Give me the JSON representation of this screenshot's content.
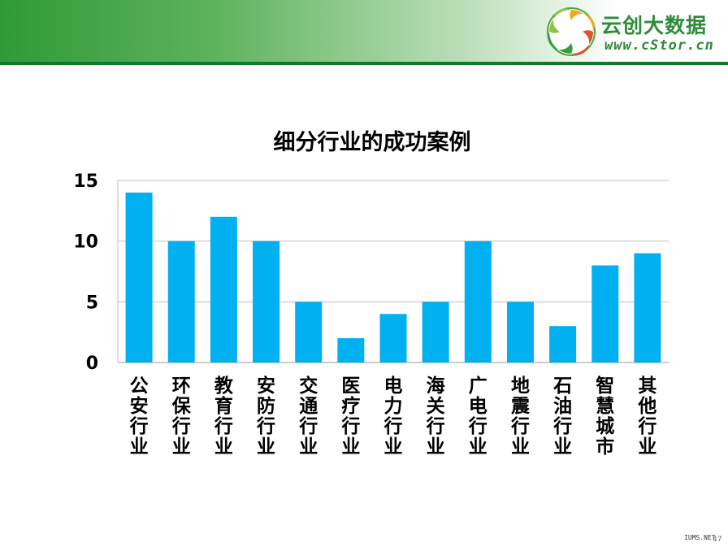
{
  "logo": {
    "name": "云创大数据",
    "url": "www.cStor.cn"
  },
  "footer": {
    "watermark": "IUMS.NET",
    "page_number": "47"
  },
  "colors": {
    "bar": "#00b0f0",
    "header_green": "#2f9a35",
    "logo_green": "#2e8b3a"
  },
  "chart_data": {
    "type": "bar",
    "title": "细分行业的成功案例",
    "categories": [
      "公安行业",
      "环保行业",
      "教育行业",
      "安防行业",
      "交通行业",
      "医疗行业",
      "电力行业",
      "海关行业",
      "广电行业",
      "地震行业",
      "石油行业",
      "智慧城市",
      "其他行业"
    ],
    "values": [
      14,
      10,
      12,
      10,
      5,
      2,
      4,
      5,
      10,
      5,
      3,
      8,
      9
    ],
    "ylim": [
      0,
      15
    ],
    "yticks": [
      "0",
      "5",
      "10",
      "15"
    ],
    "grid": true,
    "xlabel": "",
    "ylabel": ""
  }
}
